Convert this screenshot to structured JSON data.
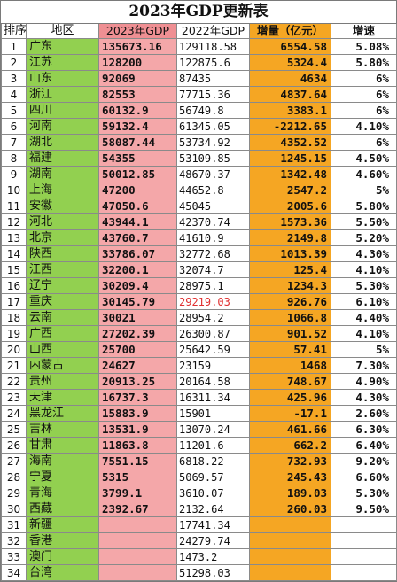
{
  "title": "2023年GDP更新表",
  "headers": {
    "rank": "排序",
    "region": "地区",
    "gdp2023": "2023年GDP",
    "gdp2022": "2022年GDP",
    "increase": "增量（亿元）",
    "rate": "增速"
  },
  "rows": [
    {
      "rank": "1",
      "region": "广东",
      "gdp2023": "135673.16",
      "gdp2022": "129118.58",
      "increase": "6554.58",
      "rate": "5.08%"
    },
    {
      "rank": "2",
      "region": "江苏",
      "gdp2023": "128200",
      "gdp2022": "122875.6",
      "increase": "5324.4",
      "rate": "5.80%"
    },
    {
      "rank": "3",
      "region": "山东",
      "gdp2023": "92069",
      "gdp2022": "87435",
      "increase": "4634",
      "rate": "6%"
    },
    {
      "rank": "4",
      "region": "浙江",
      "gdp2023": "82553",
      "gdp2022": "77715.36",
      "increase": "4837.64",
      "rate": "6%"
    },
    {
      "rank": "5",
      "region": "四川",
      "gdp2023": "60132.9",
      "gdp2022": "56749.8",
      "increase": "3383.1",
      "rate": "6%"
    },
    {
      "rank": "6",
      "region": "河南",
      "gdp2023": "59132.4",
      "gdp2022": "61345.05",
      "increase": "-2212.65",
      "rate": "4.10%"
    },
    {
      "rank": "7",
      "region": "湖北",
      "gdp2023": "58087.44",
      "gdp2022": "53734.92",
      "increase": "4352.52",
      "rate": "6%"
    },
    {
      "rank": "8",
      "region": "福建",
      "gdp2023": "54355",
      "gdp2022": "53109.85",
      "increase": "1245.15",
      "rate": "4.50%"
    },
    {
      "rank": "9",
      "region": "湖南",
      "gdp2023": "50012.85",
      "gdp2022": "48670.37",
      "increase": "1342.48",
      "rate": "4.60%"
    },
    {
      "rank": "10",
      "region": "上海",
      "gdp2023": "47200",
      "gdp2022": "44652.8",
      "increase": "2547.2",
      "rate": "5%"
    },
    {
      "rank": "11",
      "region": "安徽",
      "gdp2023": "47050.6",
      "gdp2022": "45045",
      "increase": "2005.6",
      "rate": "5.80%"
    },
    {
      "rank": "12",
      "region": "河北",
      "gdp2023": "43944.1",
      "gdp2022": "42370.74",
      "increase": "1573.36",
      "rate": "5.50%"
    },
    {
      "rank": "13",
      "region": "北京",
      "gdp2023": "43760.7",
      "gdp2022": "41610.9",
      "increase": "2149.8",
      "rate": "5.20%"
    },
    {
      "rank": "14",
      "region": "陕西",
      "gdp2023": "33786.07",
      "gdp2022": "32772.68",
      "increase": "1013.39",
      "rate": "4.30%"
    },
    {
      "rank": "15",
      "region": "江西",
      "gdp2023": "32200.1",
      "gdp2022": "32074.7",
      "increase": "125.4",
      "rate": "4.10%"
    },
    {
      "rank": "16",
      "region": "辽宁",
      "gdp2023": "30209.4",
      "gdp2022": "28975.1",
      "increase": "1234.3",
      "rate": "5.30%"
    },
    {
      "rank": "17",
      "region": "重庆",
      "gdp2023": "30145.79",
      "gdp2022": "29219.03",
      "gdp2022_red": true,
      "increase": "926.76",
      "rate": "6.10%"
    },
    {
      "rank": "18",
      "region": "云南",
      "gdp2023": "30021",
      "gdp2022": "28954.2",
      "increase": "1066.8",
      "rate": "4.40%"
    },
    {
      "rank": "19",
      "region": "广西",
      "gdp2023": "27202.39",
      "gdp2022": "26300.87",
      "increase": "901.52",
      "rate": "4.10%"
    },
    {
      "rank": "20",
      "region": "山西",
      "gdp2023": "25700",
      "gdp2022": "25642.59",
      "increase": "57.41",
      "rate": "5%"
    },
    {
      "rank": "21",
      "region": "内蒙古",
      "gdp2023": "24627",
      "gdp2022": "23159",
      "increase": "1468",
      "rate": "7.30%"
    },
    {
      "rank": "22",
      "region": "贵州",
      "gdp2023": "20913.25",
      "gdp2022": "20164.58",
      "increase": "748.67",
      "rate": "4.90%"
    },
    {
      "rank": "23",
      "region": "天津",
      "gdp2023": "16737.3",
      "gdp2022": "16311.34",
      "increase": "425.96",
      "rate": "4.30%"
    },
    {
      "rank": "24",
      "region": "黑龙江",
      "gdp2023": "15883.9",
      "gdp2022": "15901",
      "increase": "-17.1",
      "rate": "2.60%"
    },
    {
      "rank": "25",
      "region": "吉林",
      "gdp2023": "13531.9",
      "gdp2022": "13070.24",
      "increase": "461.66",
      "rate": "6.30%"
    },
    {
      "rank": "26",
      "region": "甘肃",
      "gdp2023": "11863.8",
      "gdp2022": "11201.6",
      "increase": "662.2",
      "rate": "6.40%"
    },
    {
      "rank": "27",
      "region": "海南",
      "gdp2023": "7551.15",
      "gdp2022": "6818.22",
      "increase": "732.93",
      "rate": "9.20%"
    },
    {
      "rank": "28",
      "region": "宁夏",
      "gdp2023": "5315",
      "gdp2022": "5069.57",
      "increase": "245.43",
      "rate": "6.60%"
    },
    {
      "rank": "29",
      "region": "青海",
      "gdp2023": "3799.1",
      "gdp2022": "3610.07",
      "increase": "189.03",
      "rate": "5.30%"
    },
    {
      "rank": "30",
      "region": "西藏",
      "gdp2023": "2392.67",
      "gdp2022": "2132.64",
      "increase": "260.03",
      "rate": "9.50%"
    },
    {
      "rank": "31",
      "region": "新疆",
      "gdp2023": "",
      "gdp2022": "17741.34",
      "increase": "",
      "rate": ""
    },
    {
      "rank": "32",
      "region": "香港",
      "gdp2023": "",
      "gdp2022": "24279.74",
      "increase": "",
      "rate": ""
    },
    {
      "rank": "33",
      "region": "澳门",
      "gdp2023": "",
      "gdp2022": "1473.2",
      "increase": "",
      "rate": ""
    },
    {
      "rank": "34",
      "region": "台湾",
      "gdp2023": "",
      "gdp2022": "51298.03",
      "increase": "",
      "rate": ""
    }
  ]
}
